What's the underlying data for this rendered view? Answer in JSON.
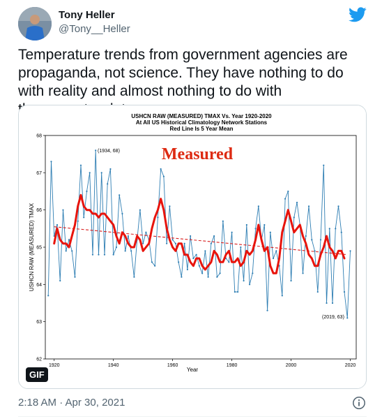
{
  "author": {
    "name": "Tony Heller",
    "handle": "@Tony__Heller"
  },
  "icons": {
    "platform_logo": "bird-icon",
    "info": "info-icon"
  },
  "tweet": {
    "text": "Temperature trends from government agencies are propaganda, not science. They have nothing to do with reality and almost nothing to do with thermometer data.",
    "timestamp": "2:18 AM · Apr 30, 2021",
    "media_badge": "GIF"
  },
  "colors": {
    "brand": "#1d9bf0",
    "series": "#2e7eb3",
    "mean": "#e8140c",
    "trend": "#d81e1e",
    "overlay_text": "#dd2a12"
  },
  "chart_data": {
    "type": "line",
    "title": "USHCN RAW (MEASURED) TMAX Vs. Year 1920-2020",
    "subtitle_lines": [
      "At All US Historical Climatology Network Stations",
      "Red Line Is 5 Year Mean"
    ],
    "xlabel": "Year",
    "ylabel": "USHCN RAW (MEASURED) TMAX",
    "xlim": [
      1917,
      2022
    ],
    "ylim": [
      62,
      68
    ],
    "xticks": [
      1920,
      1940,
      1960,
      1980,
      2000,
      2020
    ],
    "yticks": [
      62,
      63,
      64,
      65,
      66,
      67,
      68
    ],
    "grid": false,
    "overlay_label": "Measured",
    "annotations": [
      {
        "text": "(1934, 68)",
        "x": 1934,
        "y": 67.6
      },
      {
        "text": "(2019, 63)",
        "x": 2019,
        "y": 63.1
      }
    ],
    "series": [
      {
        "kind": "annual",
        "x": [
          1918,
          1919,
          1920,
          1921,
          1922,
          1923,
          1924,
          1925,
          1926,
          1927,
          1928,
          1929,
          1930,
          1931,
          1932,
          1933,
          1934,
          1935,
          1936,
          1937,
          1938,
          1939,
          1940,
          1941,
          1942,
          1943,
          1944,
          1945,
          1946,
          1947,
          1948,
          1949,
          1950,
          1951,
          1952,
          1953,
          1954,
          1955,
          1956,
          1957,
          1958,
          1959,
          1960,
          1961,
          1962,
          1963,
          1964,
          1965,
          1966,
          1967,
          1968,
          1969,
          1970,
          1971,
          1972,
          1973,
          1974,
          1975,
          1976,
          1977,
          1978,
          1979,
          1980,
          1981,
          1982,
          1983,
          1984,
          1985,
          1986,
          1987,
          1988,
          1989,
          1990,
          1991,
          1992,
          1993,
          1994,
          1995,
          1996,
          1997,
          1998,
          1999,
          2000,
          2001,
          2002,
          2003,
          2004,
          2005,
          2006,
          2007,
          2008,
          2009,
          2010,
          2011,
          2012,
          2013,
          2014,
          2015,
          2016,
          2017,
          2018,
          2019,
          2020
        ],
        "y": [
          63.7,
          67.3,
          65.3,
          65.6,
          64.1,
          66.0,
          64.9,
          65.2,
          64.9,
          64.2,
          65.7,
          67.2,
          65.8,
          66.5,
          67.0,
          64.8,
          67.6,
          64.8,
          67.0,
          64.8,
          66.7,
          67.1,
          64.8,
          65.0,
          66.4,
          65.9,
          64.9,
          65.3,
          64.9,
          64.2,
          65.2,
          66.0,
          65.1,
          65.4,
          65.2,
          64.6,
          64.5,
          65.8,
          67.1,
          66.9,
          65.1,
          66.1,
          65.2,
          65.1,
          64.6,
          64.2,
          65.1,
          64.4,
          65.3,
          64.7,
          64.8,
          64.5,
          64.3,
          64.9,
          64.2,
          65.1,
          65.3,
          64.2,
          64.3,
          65.7,
          64.7,
          64.6,
          65.4,
          63.8,
          63.8,
          65.0,
          64.1,
          65.6,
          64.0,
          64.3,
          65.5,
          66.1,
          65.2,
          65.6,
          63.3,
          65.4,
          64.7,
          64.9,
          64.5,
          63.7,
          66.3,
          66.5,
          64.1,
          65.8,
          66.2,
          65.6,
          64.3,
          65.3,
          66.1,
          65.2,
          64.9,
          63.8,
          65.2,
          67.2,
          63.5,
          65.5,
          63.5,
          65.5,
          66.1,
          65.4,
          63.8,
          63.1,
          64.9
        ]
      },
      {
        "kind": "5-year mean",
        "x": [
          1920,
          1921,
          1922,
          1923,
          1924,
          1925,
          1926,
          1927,
          1928,
          1929,
          1930,
          1931,
          1932,
          1933,
          1934,
          1935,
          1936,
          1937,
          1938,
          1939,
          1940,
          1941,
          1942,
          1943,
          1944,
          1945,
          1946,
          1947,
          1948,
          1949,
          1950,
          1951,
          1952,
          1953,
          1954,
          1955,
          1956,
          1957,
          1958,
          1959,
          1960,
          1961,
          1962,
          1963,
          1964,
          1965,
          1966,
          1967,
          1968,
          1969,
          1970,
          1971,
          1972,
          1973,
          1974,
          1975,
          1976,
          1977,
          1978,
          1979,
          1980,
          1981,
          1982,
          1983,
          1984,
          1985,
          1986,
          1987,
          1988,
          1989,
          1990,
          1991,
          1992,
          1993,
          1994,
          1995,
          1996,
          1997,
          1998,
          1999,
          2000,
          2001,
          2002,
          2003,
          2004,
          2005,
          2006,
          2007,
          2008,
          2009,
          2010,
          2011,
          2012,
          2013,
          2014,
          2015,
          2016,
          2017,
          2018
        ],
        "y": [
          65.1,
          65.5,
          65.2,
          65.1,
          65.1,
          65.0,
          65.3,
          65.6,
          66.1,
          66.4,
          66.1,
          66.0,
          66.0,
          65.9,
          65.9,
          65.8,
          65.9,
          65.9,
          65.8,
          65.7,
          65.6,
          65.3,
          65.1,
          65.4,
          65.3,
          65.1,
          65.0,
          65.0,
          65.3,
          65.2,
          64.9,
          65.0,
          65.1,
          65.5,
          65.8,
          66.0,
          66.3,
          66.0,
          65.5,
          65.2,
          65.0,
          64.9,
          65.1,
          65.1,
          64.8,
          64.8,
          64.6,
          64.5,
          64.7,
          64.7,
          64.5,
          64.4,
          64.5,
          64.6,
          64.9,
          64.8,
          64.6,
          64.6,
          64.8,
          64.9,
          64.6,
          64.6,
          64.7,
          64.5,
          64.6,
          64.9,
          64.8,
          64.9,
          65.2,
          65.6,
          65.2,
          64.9,
          65.0,
          64.5,
          64.3,
          64.3,
          64.7,
          65.4,
          65.7,
          66.0,
          65.7,
          65.4,
          65.5,
          65.6,
          65.3,
          65.1,
          64.8,
          64.7,
          64.5,
          64.5,
          64.8,
          65.0,
          65.3,
          65.0,
          64.9,
          64.7,
          64.9,
          64.9,
          64.7
        ]
      },
      {
        "kind": "trend",
        "x": [
          1920,
          2019
        ],
        "y": [
          65.55,
          64.8
        ]
      }
    ]
  }
}
